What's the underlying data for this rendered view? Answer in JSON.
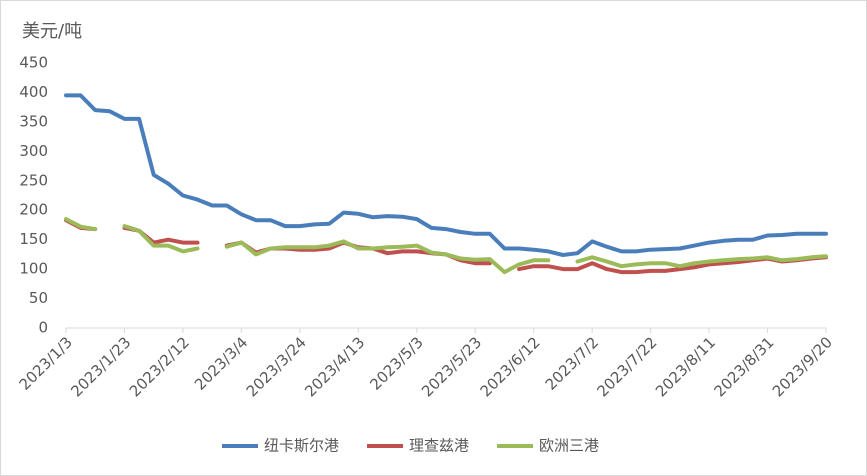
{
  "chart_data": {
    "type": "line",
    "y_label": "美元/吨",
    "x": [
      "2023/1/3",
      "2023/1/8",
      "2023/1/13",
      "2023/1/18",
      "2023/1/23",
      "2023/1/28",
      "2023/2/2",
      "2023/2/7",
      "2023/2/12",
      "2023/2/17",
      "2023/2/22",
      "2023/2/27",
      "2023/3/4",
      "2023/3/9",
      "2023/3/14",
      "2023/3/19",
      "2023/3/24",
      "2023/3/29",
      "2023/4/3",
      "2023/4/8",
      "2023/4/13",
      "2023/4/18",
      "2023/4/23",
      "2023/4/28",
      "2023/5/3",
      "2023/5/8",
      "2023/5/13",
      "2023/5/18",
      "2023/5/23",
      "2023/5/28",
      "2023/6/2",
      "2023/6/7",
      "2023/6/12",
      "2023/6/17",
      "2023/6/22",
      "2023/6/27",
      "2023/7/2",
      "2023/7/7",
      "2023/7/12",
      "2023/7/17",
      "2023/7/22",
      "2023/7/27",
      "2023/8/1",
      "2023/8/6",
      "2023/8/11",
      "2023/8/16",
      "2023/8/21",
      "2023/8/26",
      "2023/8/31",
      "2023/9/5",
      "2023/9/10",
      "2023/9/15",
      "2023/9/20"
    ],
    "series": [
      {
        "name": "纽卡斯尔港",
        "color": "#4a7ebb",
        "values": [
          395,
          395,
          370,
          368,
          355,
          355,
          260,
          245,
          225,
          218,
          208,
          208,
          193,
          183,
          183,
          173,
          173,
          176,
          177,
          196,
          194,
          188,
          190,
          189,
          185,
          170,
          168,
          163,
          160,
          160,
          135,
          135,
          133,
          130,
          124,
          127,
          147,
          138,
          130,
          130,
          133,
          134,
          135,
          140,
          145,
          148,
          150,
          150,
          157,
          158,
          160,
          160,
          160
        ]
      },
      {
        "name": "理查兹港",
        "color": "#c0504d",
        "values": [
          183,
          170,
          168,
          null,
          170,
          165,
          145,
          150,
          145,
          145,
          null,
          140,
          145,
          128,
          135,
          135,
          133,
          133,
          135,
          145,
          137,
          135,
          127,
          130,
          130,
          127,
          125,
          115,
          110,
          110,
          null,
          100,
          105,
          105,
          100,
          100,
          110,
          100,
          95,
          95,
          97,
          97,
          100,
          103,
          108,
          110,
          112,
          115,
          118,
          113,
          115,
          118,
          120
        ]
      },
      {
        "name": "欧洲三港",
        "color": "#9bbb59",
        "values": [
          185,
          172,
          168,
          null,
          173,
          165,
          140,
          140,
          130,
          135,
          null,
          138,
          145,
          125,
          135,
          137,
          137,
          137,
          140,
          147,
          135,
          135,
          137,
          138,
          140,
          128,
          125,
          118,
          116,
          117,
          95,
          108,
          115,
          115,
          null,
          113,
          120,
          113,
          105,
          108,
          110,
          110,
          105,
          110,
          113,
          115,
          117,
          118,
          120,
          115,
          117,
          120,
          122
        ]
      }
    ],
    "xlim": [
      "2023/1/3",
      "2023/9/20"
    ],
    "xticks": [
      "2023/1/3",
      "2023/1/23",
      "2023/2/12",
      "2023/3/4",
      "2023/3/24",
      "2023/4/13",
      "2023/5/3",
      "2023/5/23",
      "2023/6/12",
      "2023/7/2",
      "2023/7/22",
      "2023/8/11",
      "2023/8/31",
      "2023/9/20"
    ],
    "ylim": [
      0,
      450
    ],
    "yticks": [
      0,
      50,
      100,
      150,
      200,
      250,
      300,
      350,
      400,
      450
    ],
    "legend": "bottom"
  }
}
